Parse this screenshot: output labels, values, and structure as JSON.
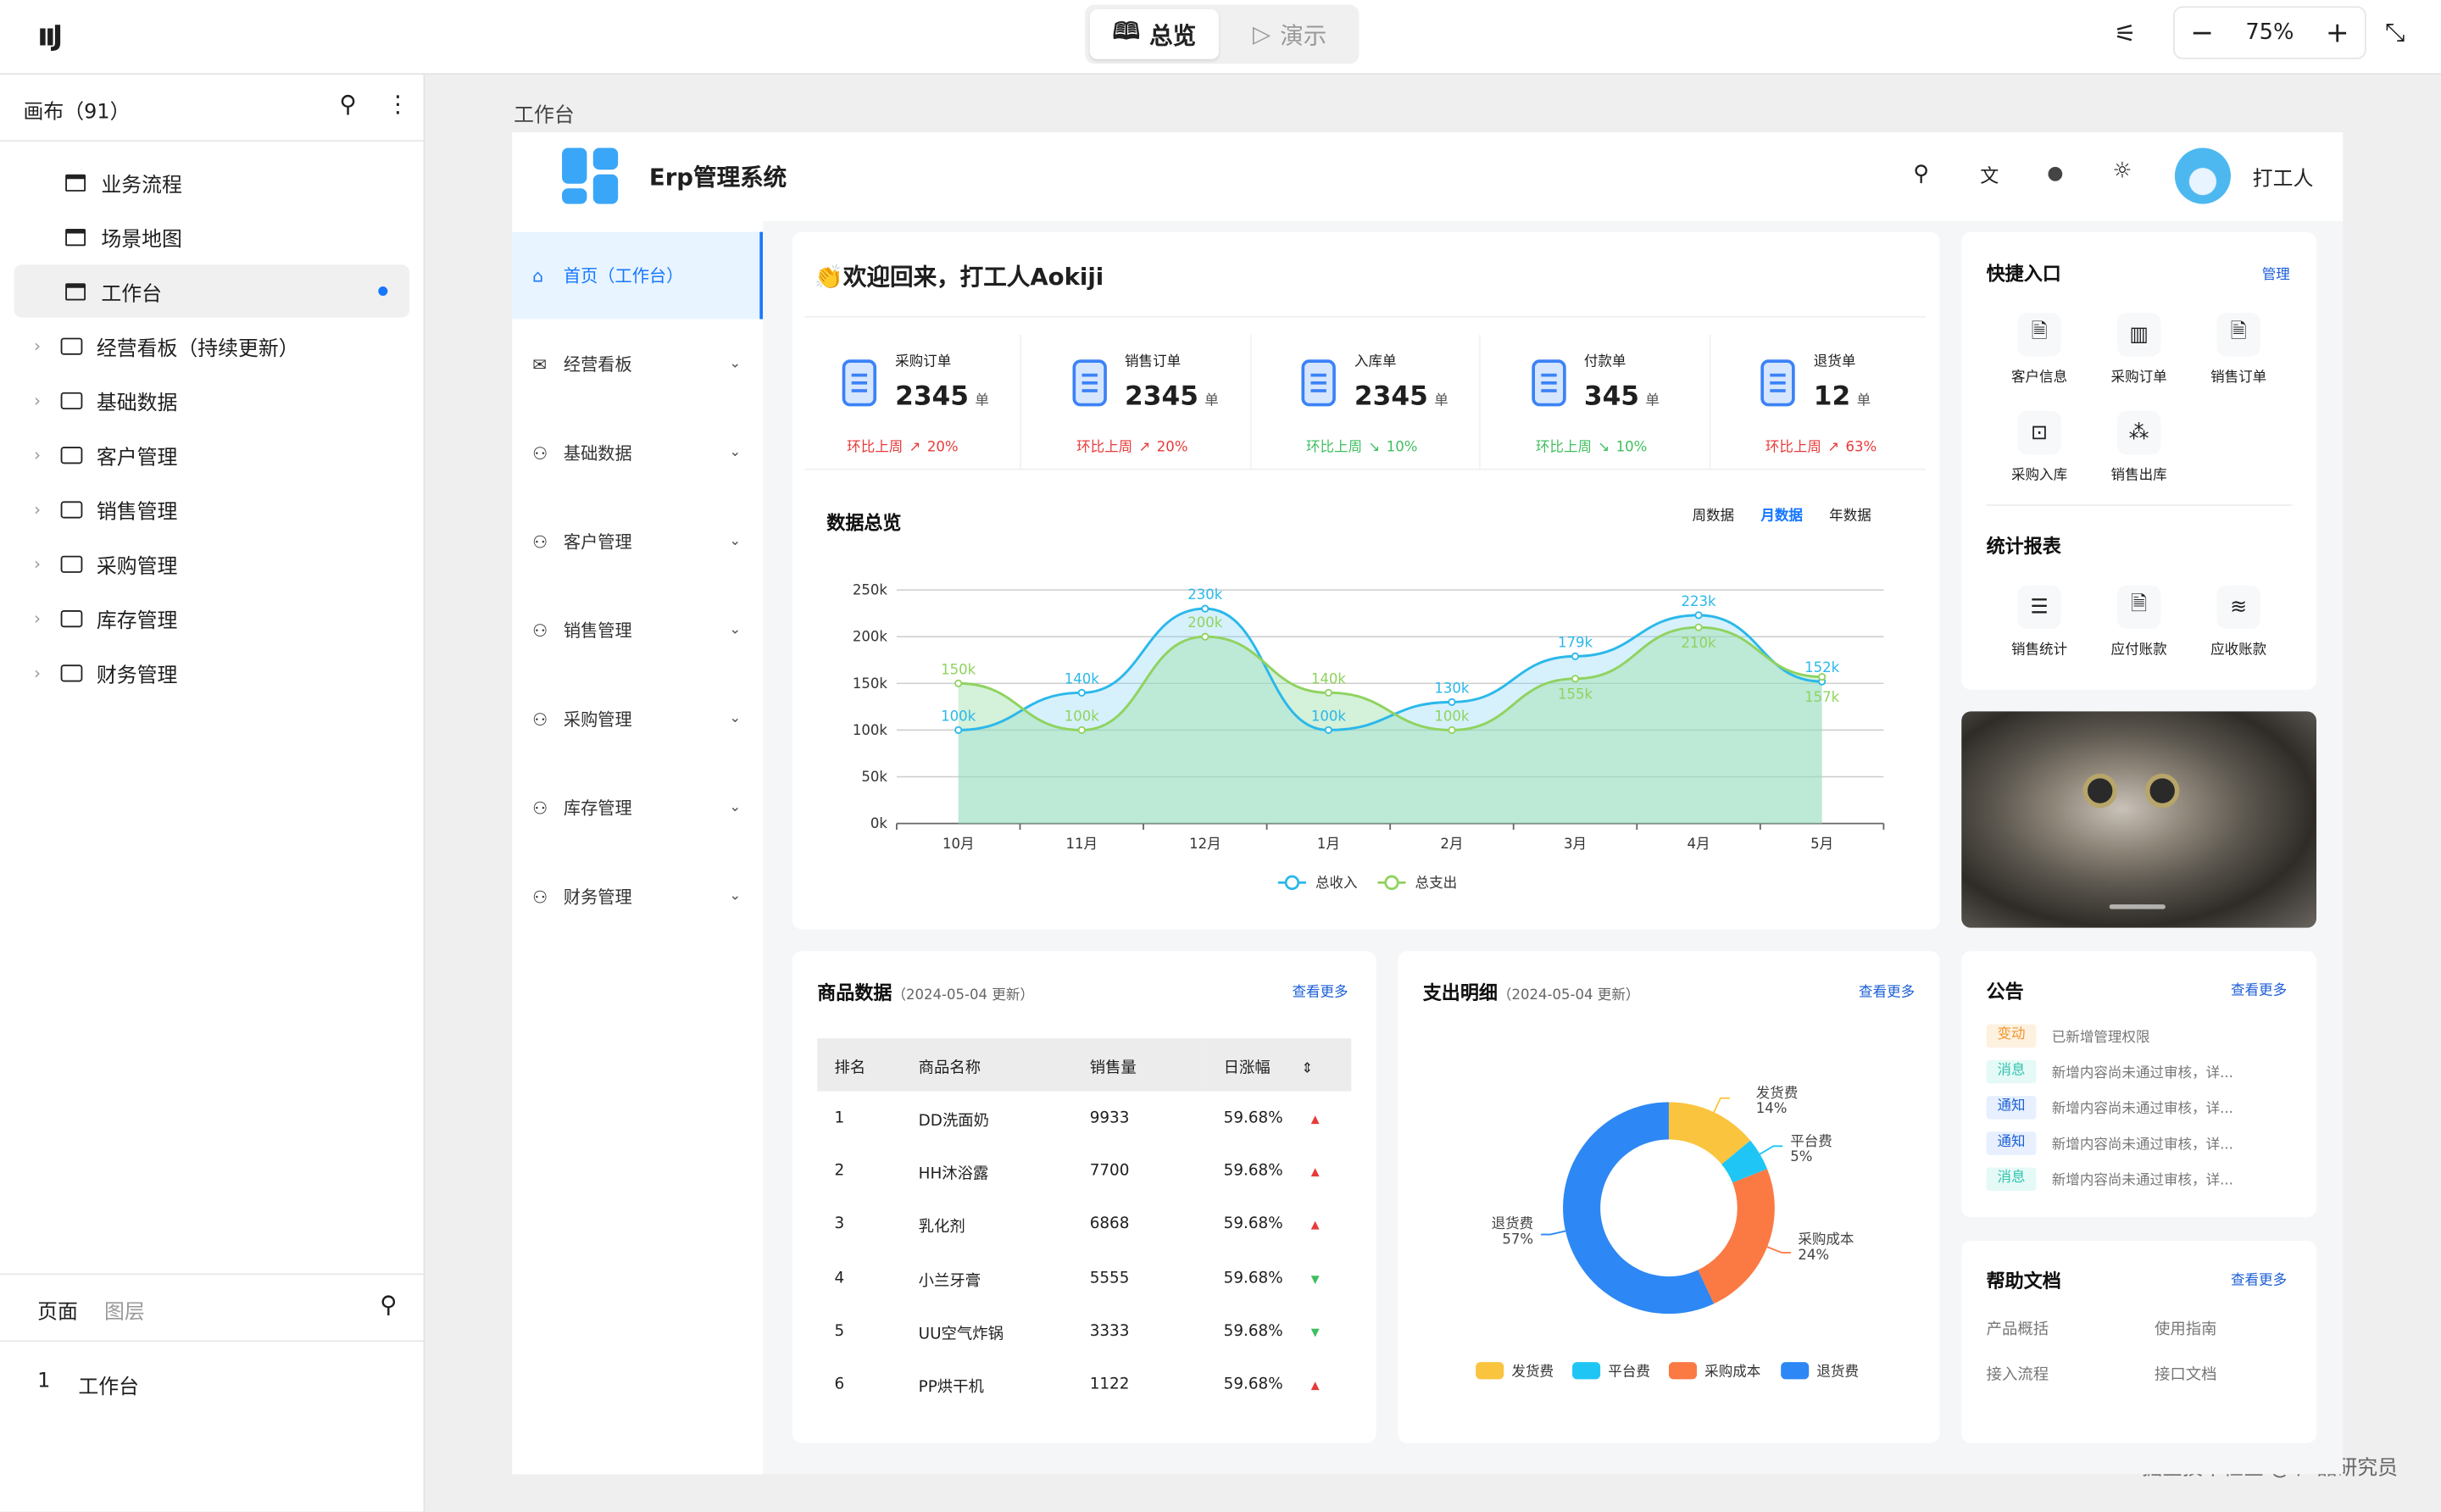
{
  "topbar": {
    "tabs": [
      {
        "label": "总览",
        "icon": "book-icon",
        "active": true
      },
      {
        "label": "演示",
        "icon": "play-icon",
        "active": false
      }
    ],
    "zoom": "75%"
  },
  "left_panel": {
    "title": "画布（91）",
    "tree": [
      {
        "label": "业务流程",
        "type": "page"
      },
      {
        "label": "场景地图",
        "type": "page"
      },
      {
        "label": "工作台",
        "type": "page",
        "selected": true
      },
      {
        "label": "经营看板（持续更新）",
        "type": "folder"
      },
      {
        "label": "基础数据",
        "type": "folder"
      },
      {
        "label": "客户管理",
        "type": "folder"
      },
      {
        "label": "销售管理",
        "type": "folder"
      },
      {
        "label": "采购管理",
        "type": "folder"
      },
      {
        "label": "库存管理",
        "type": "folder"
      },
      {
        "label": "财务管理",
        "type": "folder"
      }
    ],
    "bottom_tabs": [
      "页面",
      "图层"
    ],
    "pages": [
      {
        "index": "1",
        "label": "工作台"
      }
    ]
  },
  "canvas": {
    "frame_label": "工作台",
    "watermark": "掘金技术社区 @ 产品研究员"
  },
  "app": {
    "title": "Erp管理系统",
    "user": "打工人",
    "sidebar": [
      {
        "label": "首页（工作台）",
        "icon": "home-icon",
        "active": true
      },
      {
        "label": "经营看板",
        "icon": "mail-icon"
      },
      {
        "label": "基础数据",
        "icon": "user-icon"
      },
      {
        "label": "客户管理",
        "icon": "user-icon"
      },
      {
        "label": "销售管理",
        "icon": "user-icon"
      },
      {
        "label": "采购管理",
        "icon": "user-icon"
      },
      {
        "label": "库存管理",
        "icon": "user-icon"
      },
      {
        "label": "财务管理",
        "icon": "user-icon"
      }
    ],
    "welcome": "欢迎回来，打工人Aokiji",
    "stats": [
      {
        "label": "采购订单",
        "value": "2345",
        "unit": "单",
        "trend": "环比上周",
        "change": "20%",
        "dir": "up"
      },
      {
        "label": "销售订单",
        "value": "2345",
        "unit": "单",
        "trend": "环比上周",
        "change": "20%",
        "dir": "up"
      },
      {
        "label": "入库单",
        "value": "2345",
        "unit": "单",
        "trend": "环比上周",
        "change": "10%",
        "dir": "down"
      },
      {
        "label": "付款单",
        "value": "345",
        "unit": "单",
        "trend": "环比上周",
        "change": "10%",
        "dir": "down"
      },
      {
        "label": "退货单",
        "value": "12",
        "unit": "单",
        "trend": "环比上周",
        "change": "63%",
        "dir": "up"
      }
    ],
    "overview": {
      "title": "数据总览",
      "periods": [
        "周数据",
        "月数据",
        "年数据"
      ],
      "active_period": "月数据"
    },
    "quick": {
      "title": "快捷入口",
      "manage": "管理",
      "items": [
        {
          "label": "客户信息",
          "icon": "document-icon"
        },
        {
          "label": "采购订单",
          "icon": "bar-chart-icon"
        },
        {
          "label": "销售订单",
          "icon": "document-icon"
        },
        {
          "label": "采购入库",
          "icon": "monitor-chart-icon"
        },
        {
          "label": "销售出库",
          "icon": "nodes-icon"
        }
      ]
    },
    "reports": {
      "title": "统计报表",
      "items": [
        {
          "label": "销售统计",
          "icon": "server-icon"
        },
        {
          "label": "应付账款",
          "icon": "document-icon"
        },
        {
          "label": "应收账款",
          "icon": "layers-icon"
        }
      ]
    },
    "products": {
      "title": "商品数据",
      "subtitle": "（2024-05-04 更新）",
      "more": "查看更多",
      "columns": [
        "排名",
        "商品名称",
        "销售量",
        "日涨幅"
      ],
      "rows": [
        [
          "1",
          "DD洗面奶",
          "9933",
          "59.68%",
          "up"
        ],
        [
          "2",
          "HH沐浴露",
          "7700",
          "59.68%",
          "up"
        ],
        [
          "3",
          "乳化剂",
          "6868",
          "59.68%",
          "up"
        ],
        [
          "4",
          "小兰牙膏",
          "5555",
          "59.68%",
          "down"
        ],
        [
          "5",
          "UU空气炸锅",
          "3333",
          "59.68%",
          "down"
        ],
        [
          "6",
          "PP烘干机",
          "1122",
          "59.68%",
          "up"
        ]
      ]
    },
    "expense": {
      "title": "支出明细",
      "subtitle": "（2024-05-04 更新）",
      "more": "查看更多"
    },
    "notices": {
      "title": "公告",
      "more": "查看更多",
      "items": [
        {
          "tag": "变动",
          "kind": "change",
          "text": "已新增管理权限"
        },
        {
          "tag": "消息",
          "kind": "msg",
          "text": "新增内容尚未通过审核，详..."
        },
        {
          "tag": "通知",
          "kind": "notice",
          "text": "新增内容尚未通过审核，详..."
        },
        {
          "tag": "通知",
          "kind": "notice",
          "text": "新增内容尚未通过审核，详..."
        },
        {
          "tag": "消息",
          "kind": "msg",
          "text": "新增内容尚未通过审核，详..."
        }
      ]
    },
    "help": {
      "title": "帮助文档",
      "more": "查看更多",
      "links": [
        "产品概括",
        "使用指南",
        "接入流程",
        "接口文档"
      ]
    }
  },
  "colors": {
    "accent": "#1677ff",
    "up": "#e83a3a",
    "down": "#3fbf5f",
    "income": "#2bb8ea",
    "expense": "#8fd35f"
  },
  "chart_data": [
    {
      "type": "line",
      "categories": [
        "10月",
        "11月",
        "12月",
        "1月",
        "2月",
        "3月",
        "4月",
        "5月"
      ],
      "ylim": [
        0,
        250000
      ],
      "yticks": [
        "0k",
        "50k",
        "100k",
        "150k",
        "200k",
        "250k"
      ],
      "grid": true,
      "legend": "bottom",
      "series": [
        {
          "name": "总收入",
          "values": [
            100000,
            140000,
            230000,
            100000,
            130000,
            179000,
            223000,
            152000
          ],
          "labels": [
            "100k",
            "140k",
            "230k",
            "100k",
            "130k",
            "179k",
            "223k",
            "152k"
          ]
        },
        {
          "name": "总支出",
          "values": [
            150000,
            100000,
            200000,
            140000,
            100000,
            155000,
            210000,
            157000
          ],
          "labels": [
            "150k",
            "100k",
            "200k",
            "140k",
            "100k",
            "155k",
            "210k",
            "157k"
          ]
        }
      ]
    },
    {
      "type": "pie",
      "donut": true,
      "legend": "bottom",
      "slices": [
        {
          "name": "发货费",
          "value": 14,
          "label": "14%",
          "color": "#fbc43f"
        },
        {
          "name": "平台费",
          "value": 5,
          "label": "5%",
          "color": "#1fc6f5"
        },
        {
          "name": "采购成本",
          "value": 24,
          "label": "24%",
          "color": "#fb7a43"
        },
        {
          "name": "退货费",
          "value": 57,
          "label": "57%",
          "color": "#2d87f5"
        }
      ]
    }
  ]
}
